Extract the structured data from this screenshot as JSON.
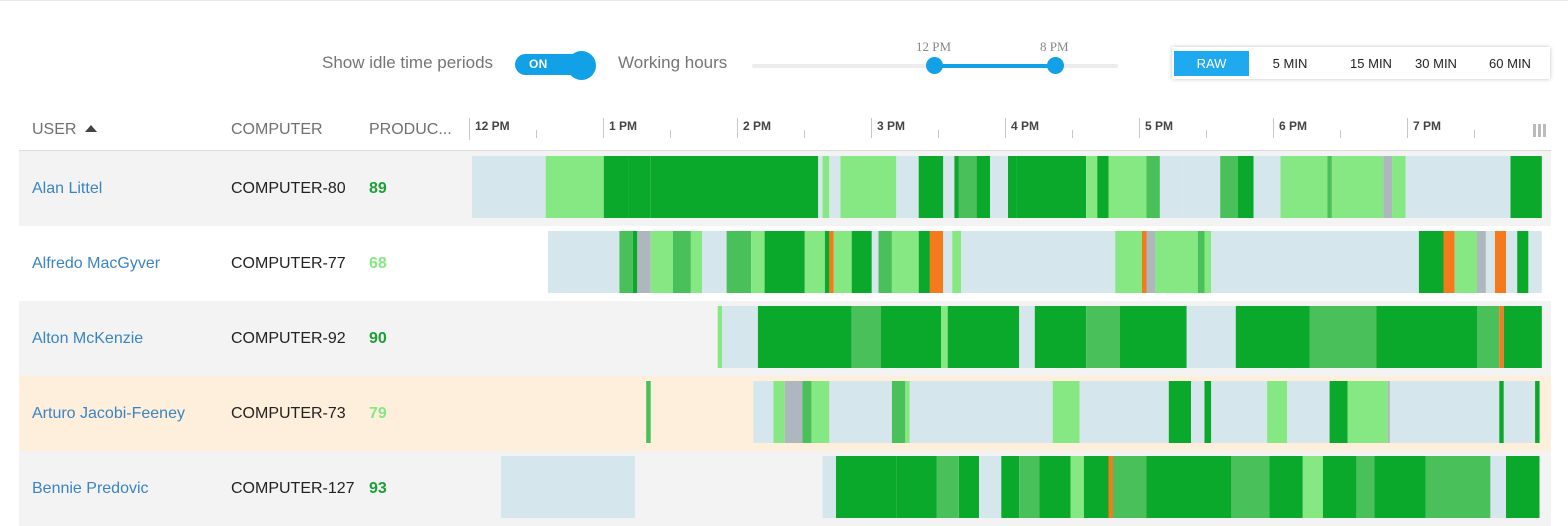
{
  "toolbar": {
    "idle_label": "Show idle time periods",
    "idle_toggle": "ON",
    "working_hours_label": "Working hours",
    "working_hours_start": "12 PM",
    "working_hours_end": "8 PM",
    "resolutions": [
      "RAW",
      "5 MIN",
      "15 MIN",
      "30 MIN",
      "60 MIN"
    ],
    "active_resolution": "RAW"
  },
  "columns": {
    "user": "USER",
    "computer": "COMPUTER",
    "productivity": "PRODUC..."
  },
  "timeline": {
    "hour_labels": [
      "12 PM",
      "1 PM",
      "2 PM",
      "3 PM",
      "4 PM",
      "5 PM",
      "6 PM",
      "7 PM"
    ]
  },
  "colors": {
    "idle": "#d6e6ed",
    "productive_dark": "#0aa82b",
    "productive_mid": "#49c05a",
    "productive_light": "#86e882",
    "neutral": "#adb7bd",
    "unproductive": "#f57a1d",
    "accent": "#12a0e6",
    "link": "#3a84c3"
  },
  "rows": [
    {
      "user": "Alan Littel",
      "computer": "COMPUTER-80",
      "productivity": "89",
      "productivity_color": "#1e9e36",
      "row_bg": "#f3f3f3",
      "segments": [
        {
          "start": "12:00 PM",
          "end": "12:33 PM",
          "type": "idle"
        },
        {
          "start": "12:33 PM",
          "end": "12:59 PM",
          "type": "light"
        },
        {
          "start": "12:59 PM",
          "end": "1:10 PM",
          "type": "dark"
        },
        {
          "start": "1:10 PM",
          "end": "1:20 PM",
          "type": "dark"
        },
        {
          "start": "1:20 PM",
          "end": "2:35 PM",
          "type": "dark"
        },
        {
          "start": "2:35 PM",
          "end": "2:37 PM",
          "type": "idle"
        },
        {
          "start": "2:37 PM",
          "end": "2:40 PM",
          "type": "light"
        },
        {
          "start": "2:40 PM",
          "end": "2:45 PM",
          "type": "idle"
        },
        {
          "start": "2:45 PM",
          "end": "3:10 PM",
          "type": "light"
        },
        {
          "start": "3:10 PM",
          "end": "3:20 PM",
          "type": "idle"
        },
        {
          "start": "3:20 PM",
          "end": "3:31 PM",
          "type": "dark"
        },
        {
          "start": "3:31 PM",
          "end": "3:36 PM",
          "type": "idle"
        },
        {
          "start": "3:36 PM",
          "end": "3:38 PM",
          "type": "dark"
        },
        {
          "start": "3:38 PM",
          "end": "3:46 PM",
          "type": "mid"
        },
        {
          "start": "3:46 PM",
          "end": "3:52 PM",
          "type": "dark"
        },
        {
          "start": "3:52 PM",
          "end": "4:00 PM",
          "type": "idle"
        },
        {
          "start": "4:00 PM",
          "end": "4:04 PM",
          "type": "dark"
        },
        {
          "start": "4:04 PM",
          "end": "4:35 PM",
          "type": "dark"
        },
        {
          "start": "4:35 PM",
          "end": "4:40 PM",
          "type": "light"
        },
        {
          "start": "4:40 PM",
          "end": "4:45 PM",
          "type": "dark"
        },
        {
          "start": "4:45 PM",
          "end": "5:02 PM",
          "type": "light"
        },
        {
          "start": "5:02 PM",
          "end": "5:08 PM",
          "type": "mid"
        },
        {
          "start": "5:08 PM",
          "end": "5:18 PM",
          "type": "idle"
        },
        {
          "start": "5:18 PM",
          "end": "5:20 PM",
          "type": "idle"
        },
        {
          "start": "5:20 PM",
          "end": "5:35 PM",
          "type": "idle"
        },
        {
          "start": "5:35 PM",
          "end": "5:43 PM",
          "type": "mid"
        },
        {
          "start": "5:43 PM",
          "end": "5:50 PM",
          "type": "dark"
        },
        {
          "start": "5:50 PM",
          "end": "6:02 PM",
          "type": "idle"
        },
        {
          "start": "6:02 PM",
          "end": "6:23 PM",
          "type": "light"
        },
        {
          "start": "6:23 PM",
          "end": "6:25 PM",
          "type": "mid"
        },
        {
          "start": "6:25 PM",
          "end": "6:48 PM",
          "type": "light"
        },
        {
          "start": "6:48 PM",
          "end": "6:52 PM",
          "type": "neutral"
        },
        {
          "start": "6:52 PM",
          "end": "6:58 PM",
          "type": "light"
        },
        {
          "start": "6:58 PM",
          "end": "7:45 PM",
          "type": "idle"
        },
        {
          "start": "7:45 PM",
          "end": "7:59 PM",
          "type": "dark"
        }
      ]
    },
    {
      "user": "Alfredo MacGyver",
      "computer": "COMPUTER-77",
      "productivity": "68",
      "productivity_color": "#86e882",
      "row_bg": "#ffffff",
      "segments": [
        {
          "start": "12:34 PM",
          "end": "1:06 PM",
          "type": "idle"
        },
        {
          "start": "1:06 PM",
          "end": "1:12 PM",
          "type": "mid"
        },
        {
          "start": "1:12 PM",
          "end": "1:14 PM",
          "type": "dark"
        },
        {
          "start": "1:14 PM",
          "end": "1:20 PM",
          "type": "neutral"
        },
        {
          "start": "1:20 PM",
          "end": "1:30 PM",
          "type": "light"
        },
        {
          "start": "1:30 PM",
          "end": "1:38 PM",
          "type": "mid"
        },
        {
          "start": "1:38 PM",
          "end": "1:43 PM",
          "type": "light"
        },
        {
          "start": "1:43 PM",
          "end": "1:54 PM",
          "type": "idle"
        },
        {
          "start": "1:54 PM",
          "end": "2:05 PM",
          "type": "mid"
        },
        {
          "start": "2:05 PM",
          "end": "2:11 PM",
          "type": "light"
        },
        {
          "start": "2:11 PM",
          "end": "2:29 PM",
          "type": "dark"
        },
        {
          "start": "2:29 PM",
          "end": "2:38 PM",
          "type": "light"
        },
        {
          "start": "2:38 PM",
          "end": "2:40 PM",
          "type": "dark"
        },
        {
          "start": "2:40 PM",
          "end": "2:42 PM",
          "type": "unproductive"
        },
        {
          "start": "2:42 PM",
          "end": "2:50 PM",
          "type": "light"
        },
        {
          "start": "2:50 PM",
          "end": "2:59 PM",
          "type": "dark"
        },
        {
          "start": "2:59 PM",
          "end": "3:02 PM",
          "type": "idle"
        },
        {
          "start": "3:02 PM",
          "end": "3:08 PM",
          "type": "mid"
        },
        {
          "start": "3:08 PM",
          "end": "3:20 PM",
          "type": "light"
        },
        {
          "start": "3:20 PM",
          "end": "3:25 PM",
          "type": "dark"
        },
        {
          "start": "3:25 PM",
          "end": "3:31 PM",
          "type": "unproductive"
        },
        {
          "start": "3:31 PM",
          "end": "3:35 PM",
          "type": "idle"
        },
        {
          "start": "3:35 PM",
          "end": "3:39 PM",
          "type": "light"
        },
        {
          "start": "3:39 PM",
          "end": "4:48 PM",
          "type": "idle"
        },
        {
          "start": "4:48 PM",
          "end": "5:00 PM",
          "type": "light"
        },
        {
          "start": "5:00 PM",
          "end": "5:02 PM",
          "type": "unproductive"
        },
        {
          "start": "5:02 PM",
          "end": "5:06 PM",
          "type": "neutral"
        },
        {
          "start": "5:06 PM",
          "end": "5:25 PM",
          "type": "light"
        },
        {
          "start": "5:25 PM",
          "end": "5:28 PM",
          "type": "mid"
        },
        {
          "start": "5:28 PM",
          "end": "5:31 PM",
          "type": "light"
        },
        {
          "start": "5:31 PM",
          "end": "7:04 PM",
          "type": "idle"
        },
        {
          "start": "7:04 PM",
          "end": "7:15 PM",
          "type": "dark"
        },
        {
          "start": "7:15 PM",
          "end": "7:20 PM",
          "type": "unproductive"
        },
        {
          "start": "7:20 PM",
          "end": "7:30 PM",
          "type": "light"
        },
        {
          "start": "7:30 PM",
          "end": "7:34 PM",
          "type": "neutral"
        },
        {
          "start": "7:34 PM",
          "end": "7:38 PM",
          "type": "idle"
        },
        {
          "start": "7:38 PM",
          "end": "7:43 PM",
          "type": "unproductive"
        },
        {
          "start": "7:43 PM",
          "end": "7:48 PM",
          "type": "idle"
        },
        {
          "start": "7:48 PM",
          "end": "7:53 PM",
          "type": "dark"
        },
        {
          "start": "7:53 PM",
          "end": "7:59 PM",
          "type": "idle"
        }
      ]
    },
    {
      "user": "Alton McKenzie",
      "computer": "COMPUTER-92",
      "productivity": "90",
      "productivity_color": "#1e9e36",
      "row_bg": "#f3f3f3",
      "segments": [
        {
          "start": "1:50 PM",
          "end": "1:52 PM",
          "type": "light"
        },
        {
          "start": "1:52 PM",
          "end": "2:08 PM",
          "type": "idle"
        },
        {
          "start": "2:08 PM",
          "end": "2:50 PM",
          "type": "dark"
        },
        {
          "start": "2:50 PM",
          "end": "3:03 PM",
          "type": "mid"
        },
        {
          "start": "3:03 PM",
          "end": "3:30 PM",
          "type": "dark"
        },
        {
          "start": "3:30 PM",
          "end": "3:33 PM",
          "type": "light"
        },
        {
          "start": "3:33 PM",
          "end": "4:05 PM",
          "type": "dark"
        },
        {
          "start": "4:05 PM",
          "end": "4:12 PM",
          "type": "idle"
        },
        {
          "start": "4:12 PM",
          "end": "4:35 PM",
          "type": "dark"
        },
        {
          "start": "4:35 PM",
          "end": "4:50 PM",
          "type": "mid"
        },
        {
          "start": "4:50 PM",
          "end": "5:20 PM",
          "type": "dark"
        },
        {
          "start": "5:20 PM",
          "end": "5:30 PM",
          "type": "idle"
        },
        {
          "start": "5:30 PM",
          "end": "5:42 PM",
          "type": "idle"
        },
        {
          "start": "5:42 PM",
          "end": "6:15 PM",
          "type": "dark"
        },
        {
          "start": "6:15 PM",
          "end": "6:45 PM",
          "type": "mid"
        },
        {
          "start": "6:45 PM",
          "end": "6:58 PM",
          "type": "dark"
        },
        {
          "start": "6:58 PM",
          "end": "7:30 PM",
          "type": "dark"
        },
        {
          "start": "7:30 PM",
          "end": "7:40 PM",
          "type": "mid"
        },
        {
          "start": "7:40 PM",
          "end": "7:42 PM",
          "type": "unproductive"
        },
        {
          "start": "7:42 PM",
          "end": "7:59 PM",
          "type": "dark"
        }
      ]
    },
    {
      "user": "Arturo Jacobi-Feeney",
      "computer": "COMPUTER-73",
      "productivity": "79",
      "productivity_color": "#86e882",
      "row_bg": "#fdefdb",
      "segments": [
        {
          "start": "1:18 PM",
          "end": "1:20 PM",
          "type": "mid"
        },
        {
          "start": "2:06 PM",
          "end": "2:15 PM",
          "type": "idle"
        },
        {
          "start": "2:15 PM",
          "end": "2:20 PM",
          "type": "light"
        },
        {
          "start": "2:20 PM",
          "end": "2:28 PM",
          "type": "neutral"
        },
        {
          "start": "2:28 PM",
          "end": "2:32 PM",
          "type": "mid"
        },
        {
          "start": "2:32 PM",
          "end": "2:40 PM",
          "type": "light"
        },
        {
          "start": "2:40 PM",
          "end": "3:08 PM",
          "type": "idle"
        },
        {
          "start": "3:08 PM",
          "end": "3:14 PM",
          "type": "mid"
        },
        {
          "start": "3:14 PM",
          "end": "3:16 PM",
          "type": "light"
        },
        {
          "start": "3:16 PM",
          "end": "4:20 PM",
          "type": "idle"
        },
        {
          "start": "4:20 PM",
          "end": "4:32 PM",
          "type": "light"
        },
        {
          "start": "4:32 PM",
          "end": "5:12 PM",
          "type": "idle"
        },
        {
          "start": "5:12 PM",
          "end": "5:22 PM",
          "type": "dark"
        },
        {
          "start": "5:22 PM",
          "end": "5:28 PM",
          "type": "idle"
        },
        {
          "start": "5:28 PM",
          "end": "5:31 PM",
          "type": "dark"
        },
        {
          "start": "5:31 PM",
          "end": "5:56 PM",
          "type": "idle"
        },
        {
          "start": "5:56 PM",
          "end": "6:05 PM",
          "type": "light"
        },
        {
          "start": "6:05 PM",
          "end": "6:24 PM",
          "type": "idle"
        },
        {
          "start": "6:24 PM",
          "end": "6:32 PM",
          "type": "dark"
        },
        {
          "start": "6:32 PM",
          "end": "6:50 PM",
          "type": "light"
        },
        {
          "start": "6:50 PM",
          "end": "6:51 PM",
          "type": "neutral"
        },
        {
          "start": "6:51 PM",
          "end": "7:40 PM",
          "type": "idle"
        },
        {
          "start": "7:40 PM",
          "end": "7:42 PM",
          "type": "dark"
        },
        {
          "start": "7:42 PM",
          "end": "7:56 PM",
          "type": "idle"
        },
        {
          "start": "7:56 PM",
          "end": "7:58 PM",
          "type": "dark"
        }
      ]
    },
    {
      "user": "Bennie Predovic",
      "computer": "COMPUTER-127",
      "productivity": "93",
      "productivity_color": "#1e9e36",
      "row_bg": "#f3f3f3",
      "segments": [
        {
          "start": "12:13 PM",
          "end": "1:13 PM",
          "type": "idle"
        },
        {
          "start": "2:37 PM",
          "end": "2:43 PM",
          "type": "idle"
        },
        {
          "start": "2:43 PM",
          "end": "3:10 PM",
          "type": "dark"
        },
        {
          "start": "3:10 PM",
          "end": "3:28 PM",
          "type": "dark"
        },
        {
          "start": "3:28 PM",
          "end": "3:38 PM",
          "type": "mid"
        },
        {
          "start": "3:38 PM",
          "end": "3:47 PM",
          "type": "dark"
        },
        {
          "start": "3:47 PM",
          "end": "3:57 PM",
          "type": "idle"
        },
        {
          "start": "3:57 PM",
          "end": "4:05 PM",
          "type": "dark"
        },
        {
          "start": "4:05 PM",
          "end": "4:14 PM",
          "type": "mid"
        },
        {
          "start": "4:14 PM",
          "end": "4:28 PM",
          "type": "dark"
        },
        {
          "start": "4:28 PM",
          "end": "4:34 PM",
          "type": "light"
        },
        {
          "start": "4:34 PM",
          "end": "4:45 PM",
          "type": "dark"
        },
        {
          "start": "4:45 PM",
          "end": "4:47 PM",
          "type": "unproductive"
        },
        {
          "start": "4:47 PM",
          "end": "5:02 PM",
          "type": "mid"
        },
        {
          "start": "5:02 PM",
          "end": "5:40 PM",
          "type": "dark"
        },
        {
          "start": "5:40 PM",
          "end": "5:57 PM",
          "type": "mid"
        },
        {
          "start": "5:57 PM",
          "end": "6:12 PM",
          "type": "dark"
        },
        {
          "start": "6:12 PM",
          "end": "6:21 PM",
          "type": "light"
        },
        {
          "start": "6:21 PM",
          "end": "6:36 PM",
          "type": "dark"
        },
        {
          "start": "6:36 PM",
          "end": "6:44 PM",
          "type": "mid"
        },
        {
          "start": "6:44 PM",
          "end": "7:07 PM",
          "type": "dark"
        },
        {
          "start": "7:07 PM",
          "end": "7:36 PM",
          "type": "mid"
        },
        {
          "start": "7:36 PM",
          "end": "7:43 PM",
          "type": "idle"
        },
        {
          "start": "7:43 PM",
          "end": "7:58 PM",
          "type": "dark"
        }
      ]
    }
  ]
}
